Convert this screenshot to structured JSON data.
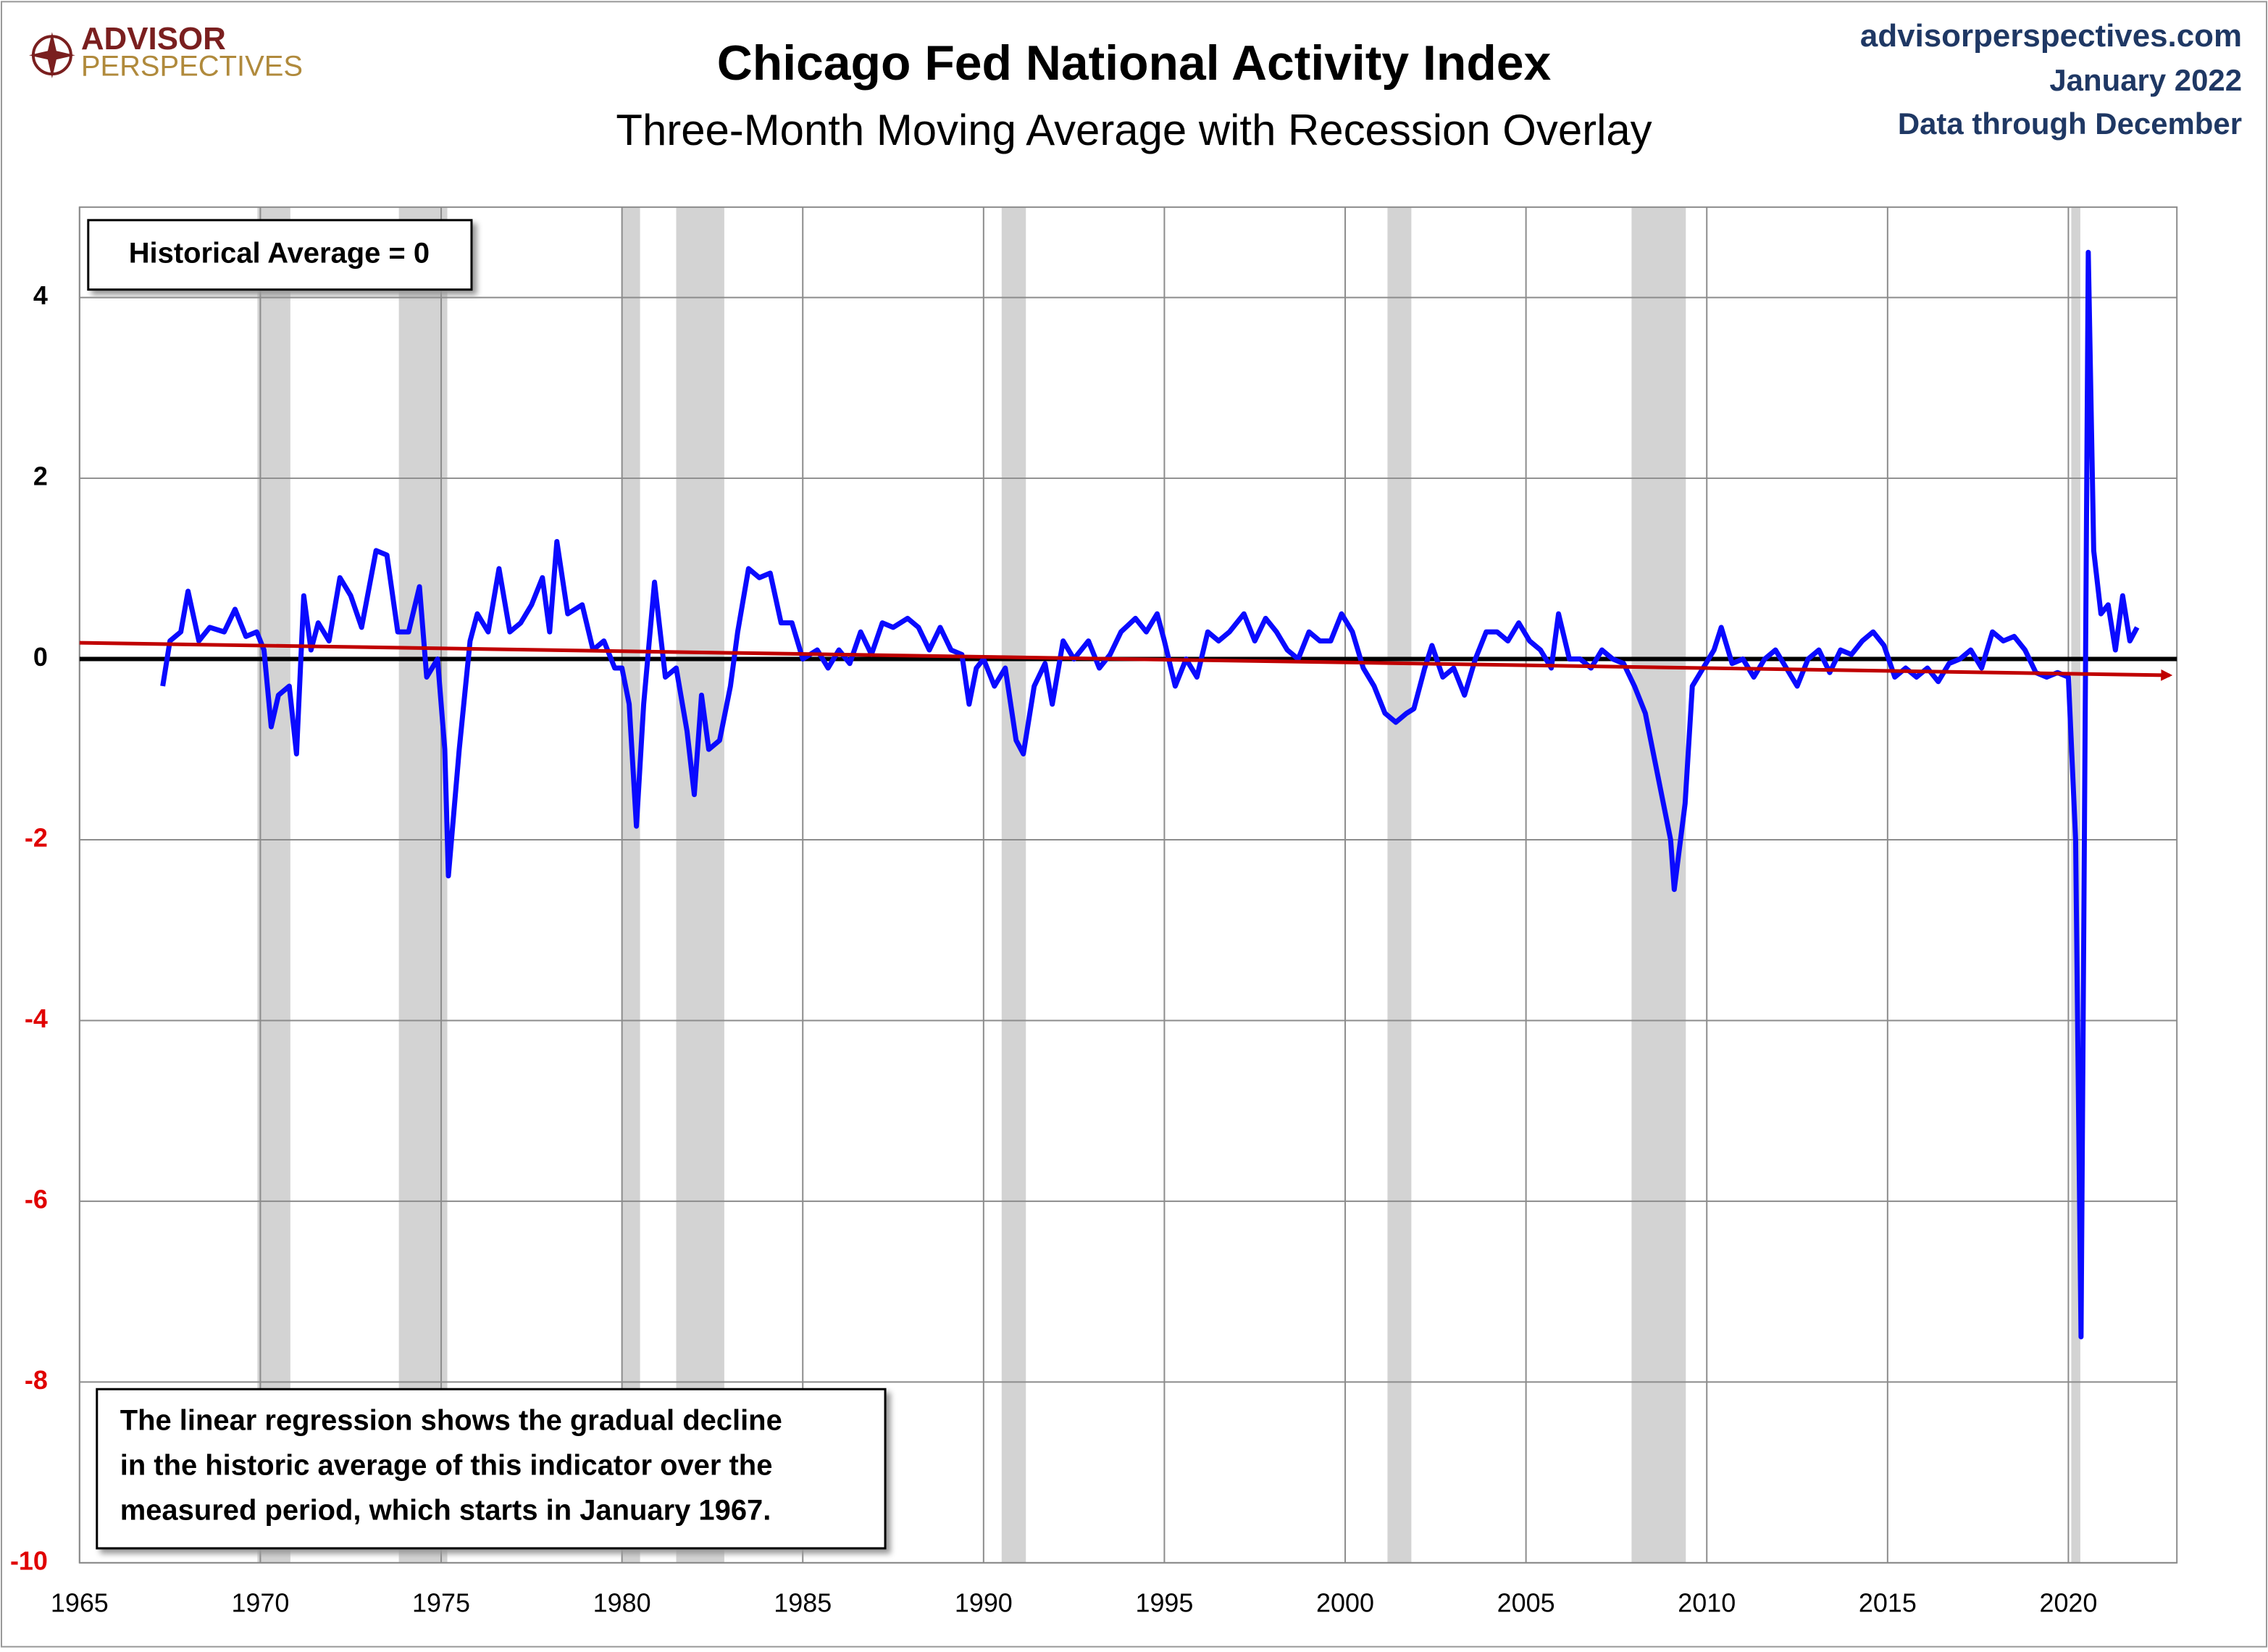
{
  "logo": {
    "top": "ADVISOR",
    "bottom": "PERSPECTIVES"
  },
  "source": [
    "advisorperspectives.com",
    "January 2022",
    "Data through December"
  ],
  "chart_data": {
    "type": "line",
    "title": "Chicago Fed National Activity Index",
    "subtitle": "Three-Month Moving Average with Recession Overlay",
    "annotations": [
      "Historical Average = 0",
      "The linear regression shows the gradual decline",
      "in the historic average of this indicator over the",
      "measured period, which starts in January 1967."
    ],
    "xlim": [
      1965,
      2023
    ],
    "xticks": [
      1965,
      1970,
      1975,
      1980,
      1985,
      1990,
      1995,
      2000,
      2005,
      2010,
      2015,
      2020
    ],
    "ylim": [
      -10,
      5
    ],
    "yticks": [
      -10,
      -8,
      -6,
      -4,
      -2,
      0,
      2,
      4
    ],
    "grid": true,
    "reference_line": 0,
    "recessions": [
      [
        1969.92,
        1970.83
      ],
      [
        1973.83,
        1975.17
      ],
      [
        1980.0,
        1980.5
      ],
      [
        1981.5,
        1982.83
      ],
      [
        1990.5,
        1991.17
      ],
      [
        2001.17,
        2001.83
      ],
      [
        2007.92,
        2009.42
      ],
      [
        2020.08,
        2020.33
      ]
    ],
    "recession_color": "#d3d3d3",
    "trend": {
      "color": "#c00000",
      "x": [
        1965,
        2022.8
      ],
      "y": [
        0.18,
        -0.18
      ]
    },
    "series": [
      {
        "color": "#0a0aff",
        "x": [
          1967.3,
          1967.5,
          1967.8,
          1968.0,
          1968.3,
          1968.6,
          1969.0,
          1969.3,
          1969.6,
          1969.9,
          1970.1,
          1970.3,
          1970.5,
          1970.8,
          1971.0,
          1971.2,
          1971.4,
          1971.6,
          1971.9,
          1972.2,
          1972.5,
          1972.8,
          1973.2,
          1973.5,
          1973.8,
          1974.1,
          1974.4,
          1974.6,
          1974.9,
          1975.1,
          1975.2,
          1975.5,
          1975.8,
          1976.0,
          1976.3,
          1976.6,
          1976.9,
          1977.2,
          1977.5,
          1977.8,
          1978.0,
          1978.2,
          1978.5,
          1978.9,
          1979.2,
          1979.5,
          1979.8,
          1980.0,
          1980.2,
          1980.4,
          1980.6,
          1980.8,
          1980.9,
          1981.2,
          1981.5,
          1981.8,
          1982.0,
          1982.2,
          1982.4,
          1982.7,
          1983.0,
          1983.2,
          1983.5,
          1983.8,
          1984.1,
          1984.4,
          1984.7,
          1985.0,
          1985.4,
          1985.7,
          1986.0,
          1986.3,
          1986.6,
          1986.9,
          1987.2,
          1987.5,
          1987.9,
          1988.2,
          1988.5,
          1988.8,
          1989.1,
          1989.4,
          1989.6,
          1989.8,
          1990.0,
          1990.3,
          1990.6,
          1990.9,
          1991.1,
          1991.4,
          1991.7,
          1991.9,
          1992.2,
          1992.5,
          1992.9,
          1993.2,
          1993.5,
          1993.8,
          1994.2,
          1994.5,
          1994.8,
          1995.0,
          1995.3,
          1995.6,
          1995.9,
          1996.2,
          1996.5,
          1996.8,
          1997.2,
          1997.5,
          1997.8,
          1998.1,
          1998.4,
          1998.7,
          1999.0,
          1999.3,
          1999.6,
          1999.9,
          2000.2,
          2000.5,
          2000.8,
          2001.1,
          2001.4,
          2001.7,
          2001.9,
          2002.2,
          2002.4,
          2002.7,
          2003.0,
          2003.3,
          2003.6,
          2003.9,
          2004.2,
          2004.5,
          2004.8,
          2005.1,
          2005.4,
          2005.7,
          2005.9,
          2006.2,
          2006.5,
          2006.8,
          2007.1,
          2007.4,
          2007.7,
          2008.0,
          2008.3,
          2008.6,
          2008.8,
          2009.0,
          2009.1,
          2009.4,
          2009.6,
          2009.9,
          2010.2,
          2010.4,
          2010.7,
          2011.0,
          2011.3,
          2011.6,
          2011.9,
          2012.2,
          2012.5,
          2012.8,
          2013.1,
          2013.4,
          2013.7,
          2014.0,
          2014.3,
          2014.6,
          2014.9,
          2015.2,
          2015.5,
          2015.8,
          2016.1,
          2016.4,
          2016.7,
          2017.0,
          2017.3,
          2017.6,
          2017.9,
          2018.2,
          2018.5,
          2018.8,
          2019.1,
          2019.4,
          2019.7,
          2020.0,
          2020.2,
          2020.35,
          2020.55,
          2020.7,
          2020.9,
          2021.1,
          2021.3,
          2021.5,
          2021.7,
          2021.9
        ],
        "values": [
          -0.3,
          0.2,
          0.3,
          0.75,
          0.2,
          0.35,
          0.3,
          0.55,
          0.25,
          0.3,
          0.1,
          -0.75,
          -0.4,
          -0.3,
          -1.05,
          0.7,
          0.1,
          0.4,
          0.2,
          0.9,
          0.7,
          0.35,
          1.2,
          1.15,
          0.3,
          0.3,
          0.8,
          -0.2,
          0.0,
          -1.0,
          -2.4,
          -1.0,
          0.2,
          0.5,
          0.3,
          1.0,
          0.3,
          0.4,
          0.6,
          0.9,
          0.3,
          1.3,
          0.5,
          0.6,
          0.1,
          0.2,
          -0.1,
          -0.1,
          -0.5,
          -1.85,
          -0.5,
          0.4,
          0.85,
          -0.2,
          -0.1,
          -0.8,
          -1.5,
          -0.4,
          -1.0,
          -0.9,
          -0.3,
          0.3,
          1.0,
          0.9,
          0.95,
          0.4,
          0.4,
          0.0,
          0.1,
          -0.1,
          0.1,
          -0.05,
          0.3,
          0.05,
          0.4,
          0.35,
          0.45,
          0.35,
          0.1,
          0.35,
          0.1,
          0.05,
          -0.5,
          -0.1,
          0.0,
          -0.3,
          -0.1,
          -0.9,
          -1.05,
          -0.3,
          -0.05,
          -0.5,
          0.2,
          0.0,
          0.2,
          -0.1,
          0.05,
          0.3,
          0.45,
          0.3,
          0.5,
          0.2,
          -0.3,
          0.0,
          -0.2,
          0.3,
          0.2,
          0.3,
          0.5,
          0.2,
          0.45,
          0.3,
          0.1,
          0.0,
          0.3,
          0.2,
          0.2,
          0.5,
          0.3,
          -0.1,
          -0.3,
          -0.6,
          -0.7,
          -0.6,
          -0.55,
          -0.1,
          0.15,
          -0.2,
          -0.1,
          -0.4,
          0.0,
          0.3,
          0.3,
          0.2,
          0.4,
          0.2,
          0.1,
          -0.1,
          0.5,
          0.0,
          0.0,
          -0.1,
          0.1,
          0.0,
          -0.05,
          -0.3,
          -0.6,
          -1.2,
          -1.6,
          -2.0,
          -2.55,
          -1.6,
          -0.3,
          -0.1,
          0.1,
          0.35,
          -0.05,
          0.0,
          -0.2,
          0.0,
          0.1,
          -0.1,
          -0.3,
          0.0,
          0.1,
          -0.15,
          0.1,
          0.05,
          0.2,
          0.3,
          0.15,
          -0.2,
          -0.1,
          -0.2,
          -0.1,
          -0.25,
          -0.05,
          0.0,
          0.1,
          -0.1,
          0.3,
          0.2,
          0.25,
          0.1,
          -0.15,
          -0.2,
          -0.15,
          -0.2,
          -2.0,
          -7.5,
          4.5,
          1.2,
          0.5,
          0.6,
          0.1,
          0.7,
          0.2,
          0.35
        ]
      }
    ]
  }
}
